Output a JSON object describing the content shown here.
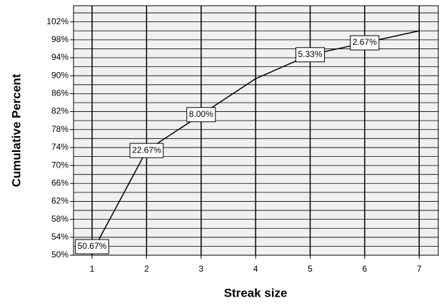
{
  "chart_data": {
    "type": "line",
    "x_label": "Streak size",
    "y_label": "Cumulative Percent",
    "x": [
      1,
      2,
      3,
      4,
      5,
      6,
      7
    ],
    "series": [
      {
        "name": "Cumulative Percent",
        "color": "#000000",
        "values": [
          50.67,
          73.33,
          81.33,
          89.33,
          94.67,
          97.33,
          100
        ]
      }
    ],
    "annotations": [
      {
        "x": 1,
        "text": "50.67%"
      },
      {
        "x": 2,
        "text": "22.67%"
      },
      {
        "x": 3,
        "text": "8.00%"
      },
      {
        "x": 5,
        "text": "5.33%"
      },
      {
        "x": 6,
        "text": "2.67%"
      }
    ],
    "xlim": [
      0.66,
      7.35
    ],
    "xticks": [
      1,
      2,
      3,
      4,
      5,
      6,
      7
    ],
    "ylim": [
      50,
      105.6
    ],
    "yticks": [
      {
        "value": 50,
        "label": "50%"
      },
      {
        "value": 54,
        "label": "54%"
      },
      {
        "value": 58,
        "label": "58%"
      },
      {
        "value": 62,
        "label": "62%"
      },
      {
        "value": 66,
        "label": "66%"
      },
      {
        "value": 70,
        "label": "70%"
      },
      {
        "value": 74,
        "label": "74%"
      },
      {
        "value": 78,
        "label": "78%"
      },
      {
        "value": 82,
        "label": "82%"
      },
      {
        "value": 86,
        "label": "86%"
      },
      {
        "value": 90,
        "label": "90%"
      },
      {
        "value": 94,
        "label": "94%"
      },
      {
        "value": 98,
        "label": "98%"
      },
      {
        "value": 102,
        "label": "102%"
      }
    ],
    "y_minor_ticks": [
      52,
      56,
      60,
      64,
      68,
      72,
      76,
      80,
      84,
      88,
      92,
      96,
      100,
      104
    ],
    "grid": true,
    "background": "#f0f0f0"
  }
}
